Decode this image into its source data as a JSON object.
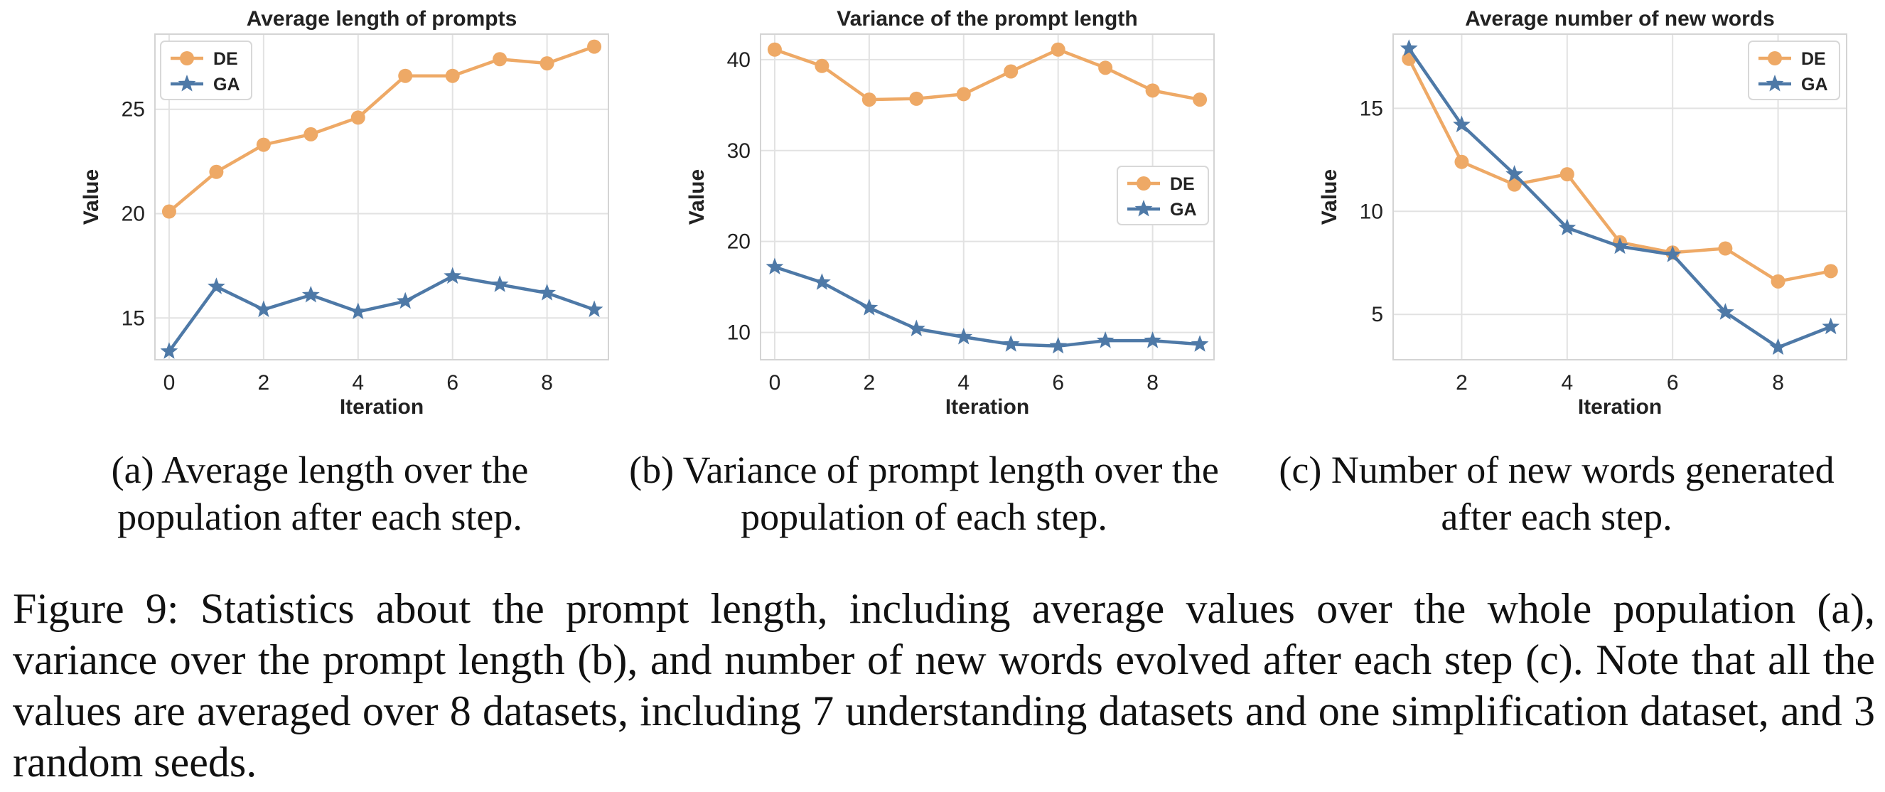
{
  "chart_data": [
    {
      "type": "line",
      "title": "Average length of prompts",
      "xlabel": "Iteration",
      "ylabel": "Value",
      "xlim": [
        -0.3,
        9.3
      ],
      "ylim": [
        13.0,
        28.6
      ],
      "xticks": [
        0,
        2,
        4,
        6,
        8
      ],
      "yticks": [
        15,
        20,
        25
      ],
      "grid": true,
      "legend": "top-left",
      "series": [
        {
          "name": "DE",
          "color": "#eea966",
          "marker": "circle",
          "x": [
            0,
            1,
            2,
            3,
            4,
            5,
            6,
            7,
            8,
            9
          ],
          "y": [
            20.1,
            22.0,
            23.3,
            23.8,
            24.6,
            26.6,
            26.6,
            27.4,
            27.2,
            28.0
          ]
        },
        {
          "name": "GA",
          "color": "#4e79a7",
          "marker": "star",
          "x": [
            0,
            1,
            2,
            3,
            4,
            5,
            6,
            7,
            8,
            9
          ],
          "y": [
            13.4,
            16.5,
            15.4,
            16.1,
            15.3,
            15.8,
            17.0,
            16.6,
            16.2,
            15.4
          ]
        }
      ]
    },
    {
      "type": "line",
      "title": "Variance of the prompt length",
      "xlabel": "Iteration",
      "ylabel": "Value",
      "xlim": [
        -0.3,
        9.3
      ],
      "ylim": [
        7.0,
        42.8
      ],
      "xticks": [
        0,
        2,
        4,
        6,
        8
      ],
      "yticks": [
        10,
        20,
        30,
        40
      ],
      "grid": true,
      "legend": "center-right",
      "series": [
        {
          "name": "DE",
          "color": "#eea966",
          "marker": "circle",
          "x": [
            0,
            1,
            2,
            3,
            4,
            5,
            6,
            7,
            8,
            9
          ],
          "y": [
            41.1,
            39.3,
            35.6,
            35.7,
            36.2,
            38.7,
            41.1,
            39.1,
            36.6,
            35.6
          ]
        },
        {
          "name": "GA",
          "color": "#4e79a7",
          "marker": "star",
          "x": [
            0,
            1,
            2,
            3,
            4,
            5,
            6,
            7,
            8,
            9
          ],
          "y": [
            17.2,
            15.5,
            12.7,
            10.4,
            9.5,
            8.7,
            8.5,
            9.1,
            9.1,
            8.7
          ]
        }
      ]
    },
    {
      "type": "line",
      "title": "Average number of new words",
      "xlabel": "Iteration",
      "ylabel": "Value",
      "xlim": [
        0.7,
        9.3
      ],
      "ylim": [
        2.8,
        18.6
      ],
      "xticks": [
        2,
        4,
        6,
        8
      ],
      "yticks": [
        5,
        10,
        15
      ],
      "grid": true,
      "legend": "top-right",
      "series": [
        {
          "name": "DE",
          "color": "#eea966",
          "marker": "circle",
          "x": [
            1,
            2,
            3,
            4,
            5,
            6,
            7,
            8,
            9
          ],
          "y": [
            17.4,
            12.4,
            11.3,
            11.8,
            8.5,
            8.0,
            8.2,
            6.6,
            7.1
          ]
        },
        {
          "name": "GA",
          "color": "#4e79a7",
          "marker": "star",
          "x": [
            1,
            2,
            3,
            4,
            5,
            6,
            7,
            8,
            9
          ],
          "y": [
            17.9,
            14.2,
            11.8,
            9.2,
            8.3,
            7.9,
            5.1,
            3.4,
            4.4
          ]
        }
      ]
    }
  ],
  "captions": {
    "a": "(a) Average length over the population after each step.",
    "b": "(b) Variance of prompt length over the population of each step.",
    "c": "(c) Number of new words generated after each step.",
    "figure": "Figure 9: Statistics about the prompt length, including average values over the whole population (a), variance over the prompt length (b), and number of new words evolved after each step (c). Note that all the values are averaged over 8 datasets, including 7 understanding datasets and one simplification dataset, and 3 random seeds."
  }
}
